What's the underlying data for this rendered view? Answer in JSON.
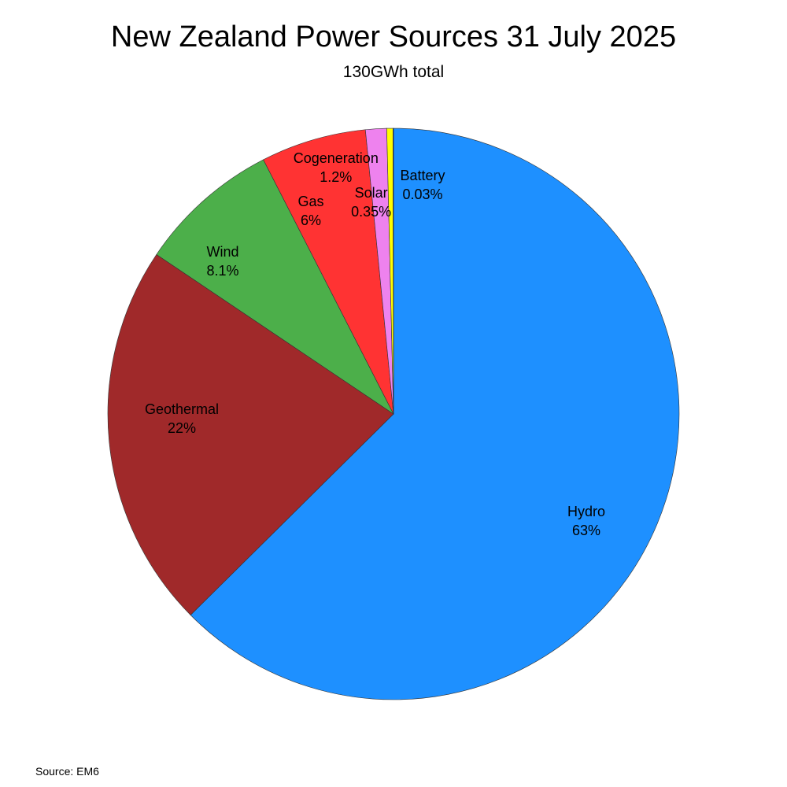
{
  "chart_data": {
    "type": "pie",
    "title": "New Zealand Power Sources 31 July 2025",
    "subtitle": "130GWh total",
    "source": "Source: EM6",
    "slices": [
      {
        "name": "Hydro",
        "value": 63,
        "label": "63%",
        "color": "#1e90ff"
      },
      {
        "name": "Geothermal",
        "value": 22,
        "label": "22%",
        "color": "#a0292a"
      },
      {
        "name": "Wind",
        "value": 8.1,
        "label": "8.1%",
        "color": "#4caf4a"
      },
      {
        "name": "Gas",
        "value": 6,
        "label": "6%",
        "color": "#ff3333"
      },
      {
        "name": "Cogeneration",
        "value": 1.2,
        "label": "1.2%",
        "color": "#ee82ee"
      },
      {
        "name": "Solar",
        "value": 0.35,
        "label": "0.35%",
        "color": "#ffff00"
      },
      {
        "name": "Battery",
        "value": 0.03,
        "label": "0.03%",
        "color": "#1a1aff"
      }
    ],
    "start": "top",
    "direction": "clockwise"
  }
}
